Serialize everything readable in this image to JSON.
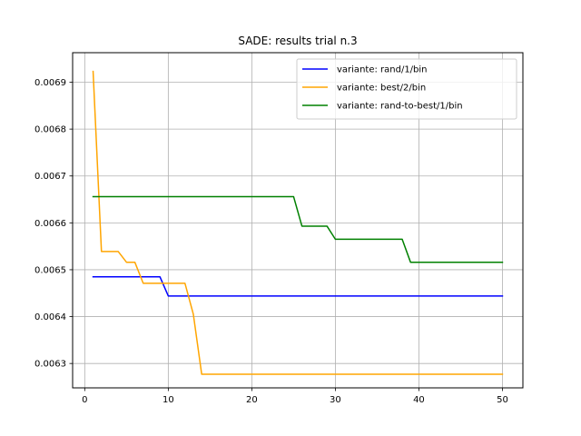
{
  "chart_data": {
    "type": "line",
    "title": "SADE: results trial n.3",
    "xlabel": "",
    "ylabel": "",
    "xlim": [
      -1.45,
      52.45
    ],
    "ylim": [
      0.006248,
      0.006963
    ],
    "xticks": [
      0,
      10,
      20,
      30,
      40,
      50
    ],
    "yticks": [
      0.0063,
      0.0064,
      0.0065,
      0.0066,
      0.0067,
      0.0068,
      0.0069
    ],
    "ytick_labels": [
      "0.0063",
      "0.0064",
      "0.0065",
      "0.0066",
      "0.0067",
      "0.0068",
      "0.0069"
    ],
    "grid": true,
    "legend_position": "top-right",
    "x": [
      1,
      2,
      3,
      4,
      5,
      6,
      7,
      8,
      9,
      10,
      11,
      12,
      13,
      14,
      15,
      16,
      17,
      18,
      19,
      20,
      21,
      22,
      23,
      24,
      25,
      26,
      27,
      28,
      29,
      30,
      31,
      32,
      33,
      34,
      35,
      36,
      37,
      38,
      39,
      40,
      41,
      42,
      43,
      44,
      45,
      46,
      47,
      48,
      49,
      50
    ],
    "series": [
      {
        "name": "variante: rand/1/bin",
        "color": "#0000ff",
        "values": [
          0.006485,
          0.006485,
          0.006485,
          0.006485,
          0.006485,
          0.006485,
          0.006485,
          0.006485,
          0.006485,
          0.006444,
          0.006444,
          0.006444,
          0.006444,
          0.006444,
          0.006444,
          0.006444,
          0.006444,
          0.006444,
          0.006444,
          0.006444,
          0.006444,
          0.006444,
          0.006444,
          0.006444,
          0.006444,
          0.006444,
          0.006444,
          0.006444,
          0.006444,
          0.006444,
          0.006444,
          0.006444,
          0.006444,
          0.006444,
          0.006444,
          0.006444,
          0.006444,
          0.006444,
          0.006444,
          0.006444,
          0.006444,
          0.006444,
          0.006444,
          0.006444,
          0.006444,
          0.006444,
          0.006444,
          0.006444,
          0.006444,
          0.006444
        ]
      },
      {
        "name": "variante: best/2/bin",
        "color": "#ffa500",
        "values": [
          0.006923,
          0.006539,
          0.006539,
          0.006539,
          0.006516,
          0.006516,
          0.006471,
          0.006471,
          0.006471,
          0.006471,
          0.006471,
          0.006471,
          0.006405,
          0.006277,
          0.006277,
          0.006277,
          0.006277,
          0.006277,
          0.006277,
          0.006277,
          0.006277,
          0.006277,
          0.006277,
          0.006277,
          0.006277,
          0.006277,
          0.006277,
          0.006277,
          0.006277,
          0.006277,
          0.006277,
          0.006277,
          0.006277,
          0.006277,
          0.006277,
          0.006277,
          0.006277,
          0.006277,
          0.006277,
          0.006277,
          0.006277,
          0.006277,
          0.006277,
          0.006277,
          0.006277,
          0.006277,
          0.006277,
          0.006277,
          0.006277,
          0.006277
        ]
      },
      {
        "name": "variante: rand-to-best/1/bin",
        "color": "#008000",
        "values": [
          0.006656,
          0.006656,
          0.006656,
          0.006656,
          0.006656,
          0.006656,
          0.006656,
          0.006656,
          0.006656,
          0.006656,
          0.006656,
          0.006656,
          0.006656,
          0.006656,
          0.006656,
          0.006656,
          0.006656,
          0.006656,
          0.006656,
          0.006656,
          0.006656,
          0.006656,
          0.006656,
          0.006656,
          0.006656,
          0.006593,
          0.006593,
          0.006593,
          0.006593,
          0.006565,
          0.006565,
          0.006565,
          0.006565,
          0.006565,
          0.006565,
          0.006565,
          0.006565,
          0.006565,
          0.006516,
          0.006516,
          0.006516,
          0.006516,
          0.006516,
          0.006516,
          0.006516,
          0.006516,
          0.006516,
          0.006516,
          0.006516,
          0.006516
        ]
      }
    ]
  }
}
